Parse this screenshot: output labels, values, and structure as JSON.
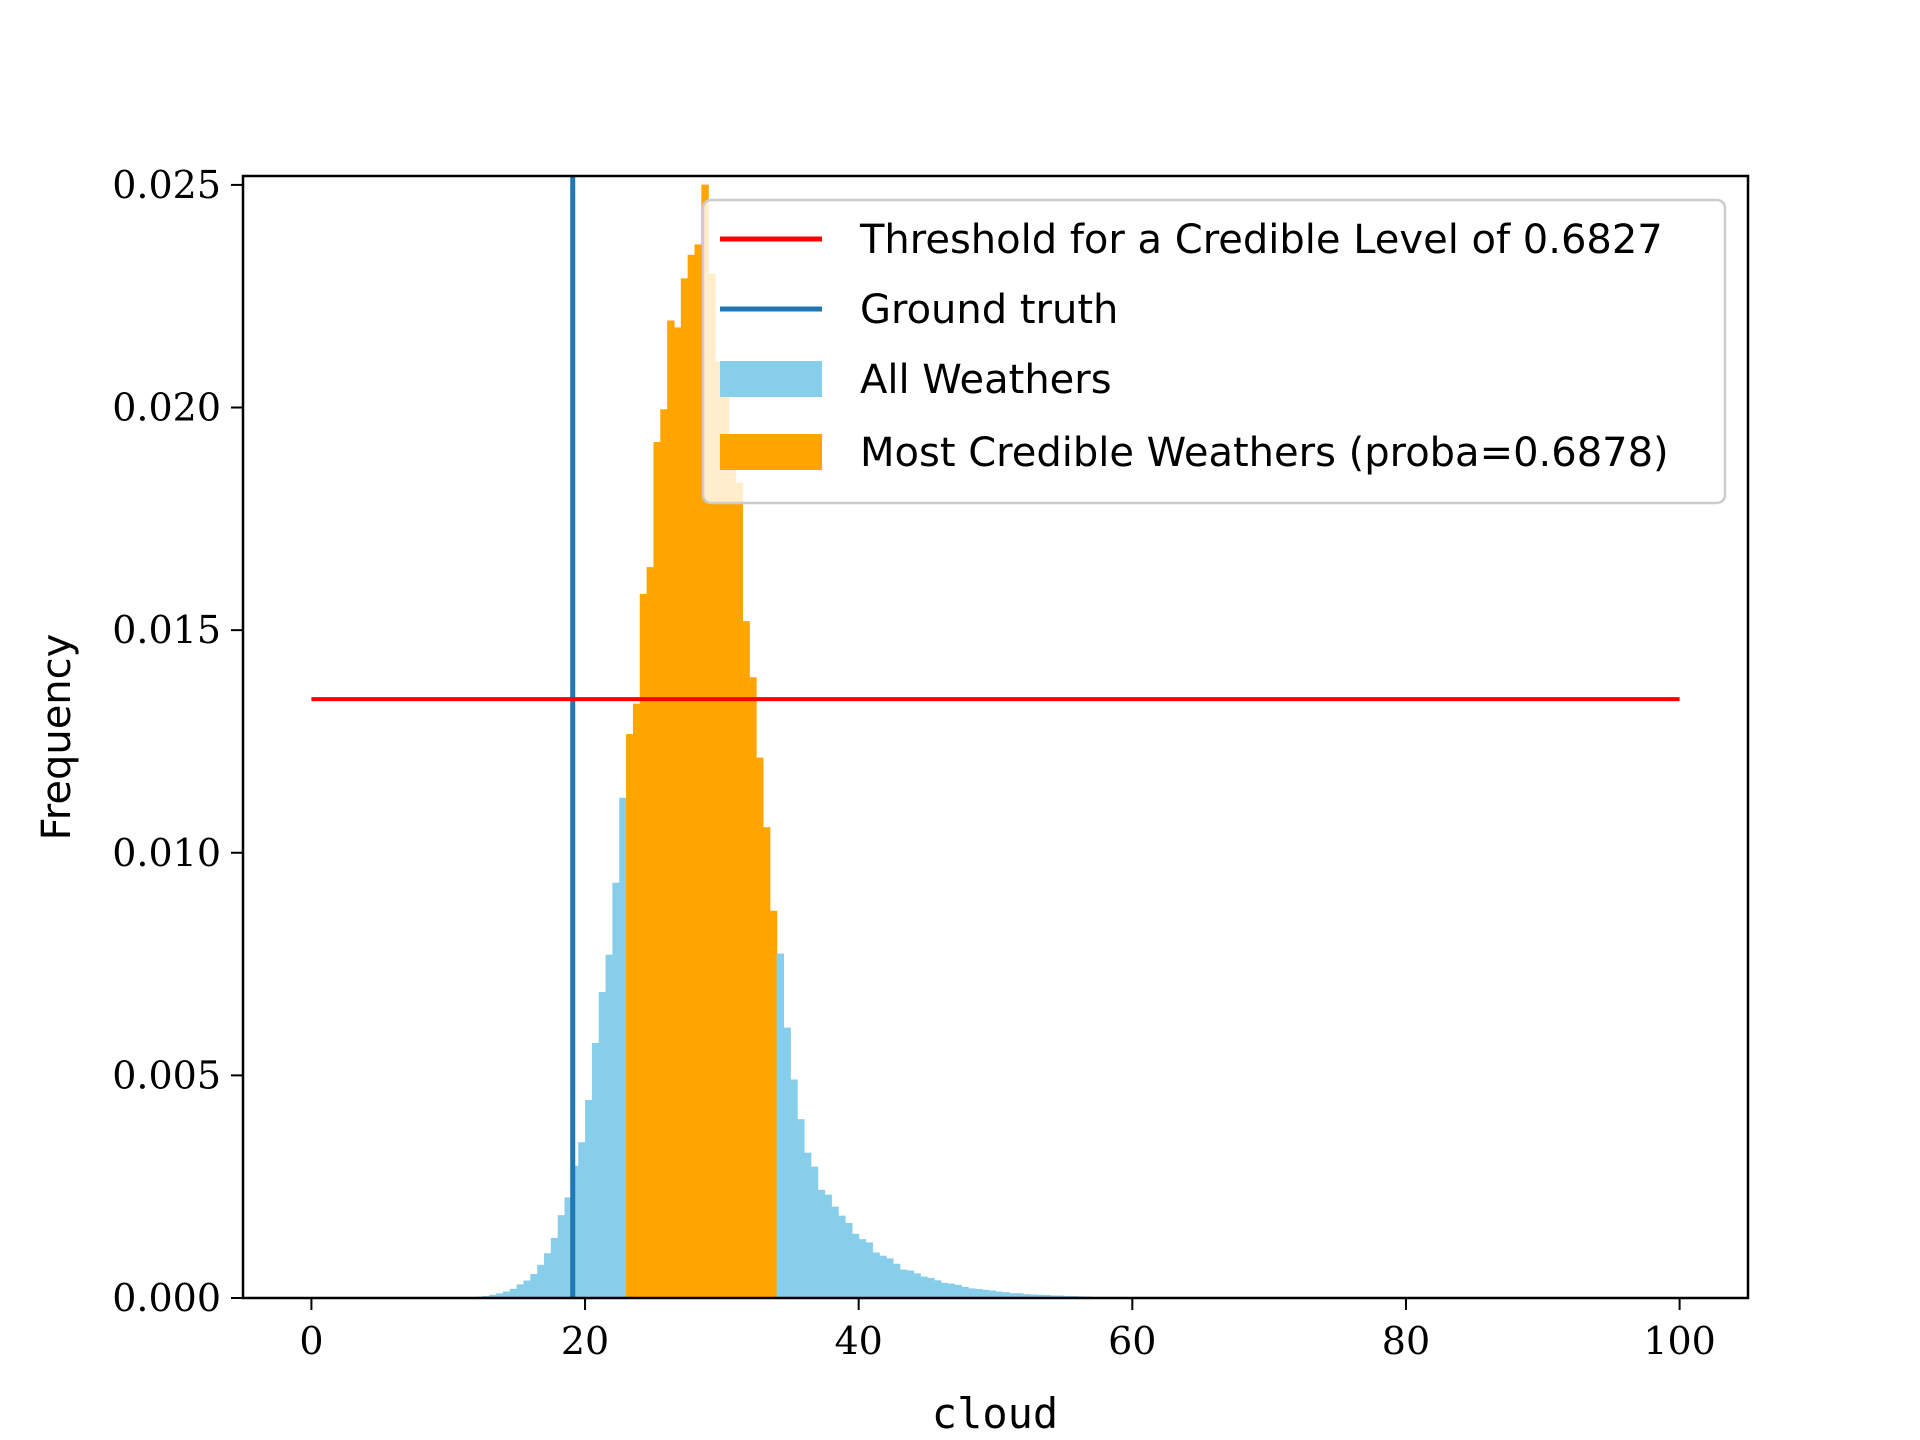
{
  "chart_data": {
    "type": "bar",
    "xlabel": "cloud",
    "ylabel": "Frequency",
    "xlim": [
      -5,
      105
    ],
    "ylim": [
      0,
      0.0252
    ],
    "xticks": [
      0,
      20,
      40,
      60,
      80,
      100
    ],
    "xtick_labels": [
      "0",
      "20",
      "40",
      "60",
      "80",
      "100"
    ],
    "yticks": [
      0.0,
      0.005,
      0.01,
      0.015,
      0.02,
      0.025
    ],
    "ytick_labels": [
      "0.000",
      "0.005",
      "0.010",
      "0.015",
      "0.020",
      "0.025"
    ],
    "bin_width": 0.5,
    "bin_start": 0,
    "credible_range": [
      23.0,
      34.0
    ],
    "threshold": 0.01345,
    "threshold_x_range": [
      0,
      100
    ],
    "ground_truth": 19.1,
    "distribution": {
      "kind": "approximate-density",
      "peak_x": 28.3,
      "peak_y": 0.0239,
      "sigma_left": 4.4,
      "sigma_right": 3.9,
      "tail_right_start": 36.0,
      "tail_right_decay": 4.5
    },
    "colors": {
      "all": "#87ceeb",
      "credible": "#ffa500",
      "threshold": "#ff0000",
      "ground_truth": "#1f77b4"
    },
    "legend": {
      "placement": "upper-right",
      "entries": [
        {
          "label": "Threshold for a Credible Level of 0.6827",
          "kind": "line",
          "color": "#ff0000"
        },
        {
          "label": "Ground truth",
          "kind": "line",
          "color": "#1f77b4"
        },
        {
          "label": "All Weathers",
          "kind": "patch",
          "color": "#87ceeb"
        },
        {
          "label": "Most Credible Weathers (proba=0.6878)",
          "kind": "patch",
          "color": "#ffa500"
        }
      ]
    }
  }
}
